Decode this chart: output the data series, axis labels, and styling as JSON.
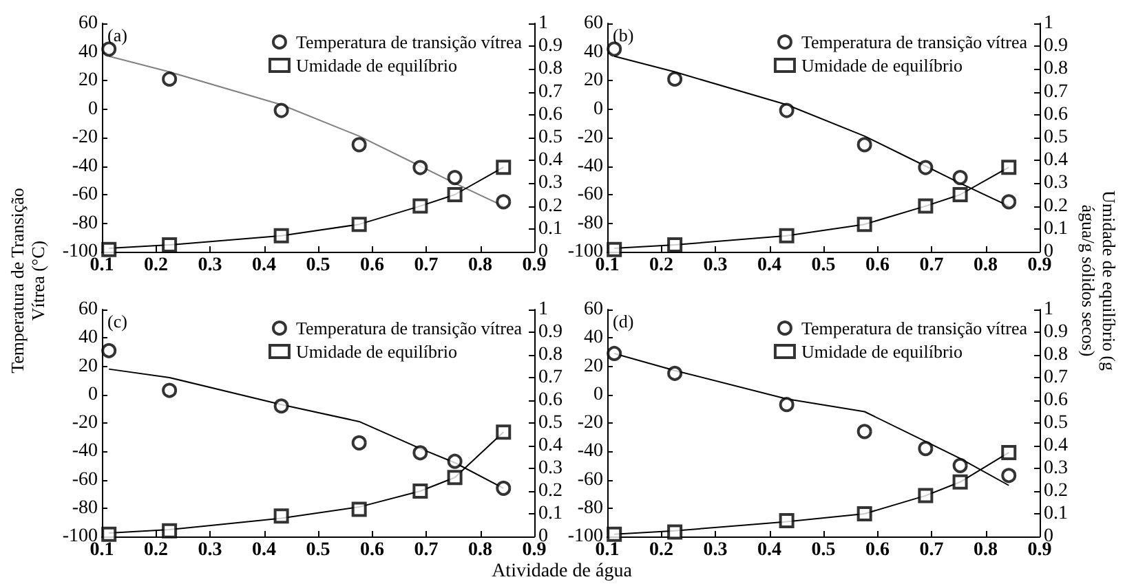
{
  "chart_data": [
    {
      "type": "scatter",
      "ylabel": "Temperatura de Transição Vítrea (°C)",
      "xlim": [
        0.1,
        0.9
      ],
      "xticks": [
        0.1,
        0.2,
        0.3,
        0.4,
        0.5,
        0.6,
        0.7,
        0.8,
        0.9
      ],
      "ylim": [
        -100,
        60
      ],
      "yticks": [
        -100,
        -80,
        -60,
        -40,
        -20,
        0,
        20,
        40,
        60
      ],
      "y2lim": [
        0,
        1
      ],
      "y2ticks": [
        0,
        0.1,
        0.2,
        0.3,
        0.4,
        0.5,
        0.6,
        0.7,
        0.8,
        0.9,
        1
      ],
      "legend": "top right",
      "grid": false,
      "annotations": [
        "(a)"
      ],
      "series": [
        {
          "name": "Temperatura de transição vítrea",
          "marker": "circle",
          "color": "#000000",
          "x": [
            0.113,
            0.225,
            0.432,
            0.576,
            0.689,
            0.753,
            0.843
          ],
          "values": [
            42,
            21,
            -1,
            -25,
            -41,
            -48,
            -65
          ]
        },
        {
          "name": "Umidade de equilíbrio",
          "marker": "square",
          "axis": "y2",
          "color": "#000000",
          "x": [
            0.113,
            0.225,
            0.432,
            0.576,
            0.689,
            0.753,
            0.843
          ],
          "values": [
            0.01,
            0.03,
            0.07,
            0.12,
            0.2,
            0.25,
            0.37
          ]
        },
        {
          "type": "line",
          "marker": "none",
          "color": "#808080",
          "x": [
            0.113,
            0.225,
            0.432,
            0.576,
            0.689,
            0.753,
            0.843
          ],
          "values": [
            37,
            26,
            3,
            -19,
            -40,
            -52,
            -68
          ]
        },
        {
          "type": "line",
          "marker": "none",
          "axis": "y2",
          "color": "#000000",
          "x": [
            0.113,
            0.225,
            0.432,
            0.576,
            0.689,
            0.753,
            0.843
          ],
          "values": [
            0.015,
            0.03,
            0.07,
            0.12,
            0.2,
            0.25,
            0.37
          ]
        }
      ]
    },
    {
      "type": "scatter",
      "y2label": "Umidade de equilíbrio (g água/g sólidos secos)",
      "xlim": [
        0.1,
        0.9
      ],
      "xticks": [
        0.1,
        0.2,
        0.3,
        0.4,
        0.5,
        0.6,
        0.7,
        0.8,
        0.9
      ],
      "ylim": [
        -100,
        60
      ],
      "yticks": [
        -100,
        -80,
        -60,
        -40,
        -20,
        0,
        20,
        40,
        60
      ],
      "y2lim": [
        0,
        1
      ],
      "y2ticks": [
        0,
        0.1,
        0.2,
        0.3,
        0.4,
        0.5,
        0.6,
        0.7,
        0.8,
        0.9,
        1
      ],
      "legend": "top right",
      "grid": false,
      "annotations": [
        "(b)"
      ],
      "series": [
        {
          "name": "Temperatura de transição vítrea",
          "marker": "circle",
          "color": "#000000",
          "x": [
            0.113,
            0.225,
            0.432,
            0.576,
            0.689,
            0.753,
            0.843
          ],
          "values": [
            42,
            21,
            -1,
            -25,
            -41,
            -48,
            -65
          ]
        },
        {
          "name": "Umidade de equilíbrio",
          "marker": "square",
          "axis": "y2",
          "color": "#000000",
          "x": [
            0.113,
            0.225,
            0.432,
            0.576,
            0.689,
            0.753,
            0.843
          ],
          "values": [
            0.01,
            0.03,
            0.07,
            0.12,
            0.2,
            0.25,
            0.37
          ]
        },
        {
          "type": "line",
          "marker": "none",
          "color": "#000000",
          "x": [
            0.113,
            0.225,
            0.432,
            0.576,
            0.689,
            0.753,
            0.843
          ],
          "values": [
            37,
            26,
            3,
            -19,
            -40,
            -52,
            -68
          ]
        },
        {
          "type": "line",
          "marker": "none",
          "axis": "y2",
          "color": "#000000",
          "x": [
            0.113,
            0.225,
            0.432,
            0.576,
            0.689,
            0.753,
            0.843
          ],
          "values": [
            0.015,
            0.03,
            0.07,
            0.12,
            0.2,
            0.25,
            0.37
          ]
        }
      ]
    },
    {
      "type": "scatter",
      "xlabel": "Atividade de água",
      "xlim": [
        0.1,
        0.9
      ],
      "xticks": [
        0.1,
        0.2,
        0.3,
        0.4,
        0.5,
        0.6,
        0.7,
        0.8,
        0.9
      ],
      "ylim": [
        -100,
        60
      ],
      "yticks": [
        -100,
        -80,
        -60,
        -40,
        -20,
        0,
        20,
        40,
        60
      ],
      "y2lim": [
        0,
        1
      ],
      "y2ticks": [
        0,
        0.1,
        0.2,
        0.3,
        0.4,
        0.5,
        0.6,
        0.7,
        0.8,
        0.9,
        1
      ],
      "legend": "top right",
      "grid": false,
      "annotations": [
        "(c)"
      ],
      "series": [
        {
          "name": "Temperatura de transição vítrea",
          "marker": "circle",
          "color": "#000000",
          "x": [
            0.113,
            0.225,
            0.432,
            0.576,
            0.689,
            0.753,
            0.843
          ],
          "values": [
            31,
            3,
            -8,
            -34,
            -41,
            -47,
            -66
          ]
        },
        {
          "name": "Umidade de equilíbrio",
          "marker": "square",
          "axis": "y2",
          "color": "#000000",
          "x": [
            0.113,
            0.225,
            0.432,
            0.576,
            0.689,
            0.753,
            0.843
          ],
          "values": [
            0.01,
            0.025,
            0.09,
            0.12,
            0.2,
            0.26,
            0.46
          ]
        },
        {
          "type": "line",
          "marker": "none",
          "color": "#000000",
          "x": [
            0.113,
            0.225,
            0.432,
            0.576,
            0.689,
            0.753,
            0.843
          ],
          "values": [
            18,
            12,
            -7,
            -19,
            -38,
            -48,
            -66
          ]
        },
        {
          "type": "line",
          "marker": "none",
          "axis": "y2",
          "color": "#000000",
          "x": [
            0.113,
            0.225,
            0.432,
            0.576,
            0.689,
            0.753,
            0.843
          ],
          "values": [
            0.015,
            0.03,
            0.08,
            0.13,
            0.2,
            0.26,
            0.46
          ]
        }
      ]
    },
    {
      "type": "scatter",
      "xlim": [
        0.1,
        0.9
      ],
      "xticks": [
        0.1,
        0.2,
        0.3,
        0.4,
        0.5,
        0.6,
        0.7,
        0.8,
        0.9
      ],
      "ylim": [
        -100,
        60
      ],
      "yticks": [
        -100,
        -80,
        -60,
        -40,
        -20,
        0,
        20,
        40,
        60
      ],
      "y2lim": [
        0,
        1
      ],
      "y2ticks": [
        0,
        0.1,
        0.2,
        0.3,
        0.4,
        0.5,
        0.6,
        0.7,
        0.8,
        0.9,
        1
      ],
      "legend": "top right",
      "grid": false,
      "annotations": [
        "(d)"
      ],
      "series": [
        {
          "name": "Temperatura de transição vítrea",
          "marker": "circle",
          "color": "#000000",
          "x": [
            0.113,
            0.225,
            0.432,
            0.576,
            0.689,
            0.753,
            0.843
          ],
          "values": [
            29,
            15,
            -7,
            -26,
            -38,
            -50,
            -57
          ]
        },
        {
          "name": "Umidade de equilíbrio",
          "marker": "square",
          "axis": "y2",
          "color": "#000000",
          "x": [
            0.113,
            0.225,
            0.432,
            0.576,
            0.689,
            0.753,
            0.843
          ],
          "values": [
            0.01,
            0.02,
            0.07,
            0.1,
            0.18,
            0.24,
            0.37
          ]
        },
        {
          "type": "line",
          "marker": "none",
          "color": "#000000",
          "x": [
            0.113,
            0.225,
            0.432,
            0.576,
            0.689,
            0.753,
            0.843
          ],
          "values": [
            29,
            17,
            -3,
            -12,
            -33,
            -45,
            -64
          ]
        },
        {
          "type": "line",
          "marker": "none",
          "axis": "y2",
          "color": "#000000",
          "x": [
            0.113,
            0.225,
            0.432,
            0.576,
            0.689,
            0.753,
            0.843
          ],
          "values": [
            0.01,
            0.025,
            0.065,
            0.1,
            0.18,
            0.24,
            0.37
          ]
        }
      ]
    }
  ]
}
